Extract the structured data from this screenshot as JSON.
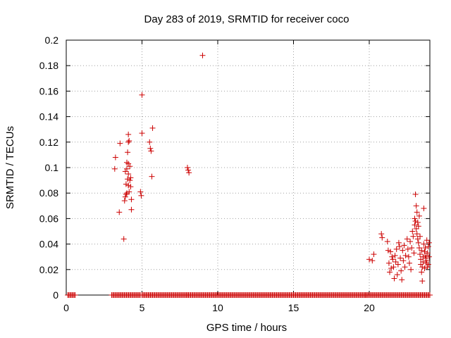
{
  "chart_data": {
    "type": "scatter",
    "title": "Day 283 of 2019, SRMTID for receiver coco",
    "xlabel": "GPS time / hours",
    "ylabel": "SRMTID / TECUs",
    "xlim": [
      0,
      24
    ],
    "ylim": [
      0,
      0.2
    ],
    "xticks": [
      0,
      5,
      10,
      15,
      20
    ],
    "yticks": [
      0,
      0.02,
      0.04,
      0.06,
      0.08,
      0.1,
      0.12,
      0.14,
      0.16,
      0.18,
      0.2
    ],
    "ytick_labels": [
      "0",
      "0.02",
      "0.04",
      "0.06",
      "0.08",
      "0.1",
      "0.12",
      "0.14",
      "0.16",
      "0.18",
      "0.2"
    ],
    "grid": true,
    "marker": "+",
    "color": "#cc0000",
    "series": [
      {
        "name": "SRMTID",
        "points": [
          [
            3.2,
            0.099
          ],
          [
            3.25,
            0.108
          ],
          [
            3.5,
            0.065
          ],
          [
            3.55,
            0.119
          ],
          [
            3.8,
            0.044
          ],
          [
            3.85,
            0.074
          ],
          [
            3.9,
            0.077
          ],
          [
            3.9,
            0.097
          ],
          [
            3.95,
            0.087
          ],
          [
            4.0,
            0.099
          ],
          [
            4.0,
            0.104
          ],
          [
            4.0,
            0.08
          ],
          [
            4.05,
            0.091
          ],
          [
            4.05,
            0.112
          ],
          [
            4.1,
            0.12
          ],
          [
            4.1,
            0.126
          ],
          [
            4.1,
            0.095
          ],
          [
            4.1,
            0.086
          ],
          [
            4.15,
            0.081
          ],
          [
            4.15,
            0.121
          ],
          [
            4.2,
            0.101
          ],
          [
            4.2,
            0.09
          ],
          [
            4.25,
            0.092
          ],
          [
            4.25,
            0.085
          ],
          [
            4.3,
            0.075
          ],
          [
            4.3,
            0.067
          ],
          [
            4.1,
            0.103
          ],
          [
            3.95,
            0.079
          ],
          [
            4.9,
            0.081
          ],
          [
            4.95,
            0.078
          ],
          [
            5.0,
            0.127
          ],
          [
            5.0,
            0.157
          ],
          [
            5.5,
            0.12
          ],
          [
            5.55,
            0.115
          ],
          [
            5.6,
            0.113
          ],
          [
            5.65,
            0.093
          ],
          [
            5.7,
            0.131
          ],
          [
            8.0,
            0.1
          ],
          [
            8.05,
            0.098
          ],
          [
            8.1,
            0.096
          ],
          [
            9.0,
            0.188
          ],
          [
            20.0,
            0.028
          ],
          [
            20.2,
            0.027
          ],
          [
            20.3,
            0.032
          ],
          [
            20.8,
            0.048
          ],
          [
            20.85,
            0.045
          ],
          [
            21.2,
            0.042
          ],
          [
            21.25,
            0.035
          ],
          [
            21.3,
            0.025
          ],
          [
            21.35,
            0.018
          ],
          [
            21.4,
            0.034
          ],
          [
            21.45,
            0.021
          ],
          [
            21.5,
            0.03
          ],
          [
            21.55,
            0.028
          ],
          [
            21.6,
            0.022
          ],
          [
            21.65,
            0.013
          ],
          [
            21.7,
            0.031
          ],
          [
            21.75,
            0.026
          ],
          [
            21.8,
            0.036
          ],
          [
            21.85,
            0.016
          ],
          [
            21.9,
            0.024
          ],
          [
            21.95,
            0.041
          ],
          [
            22.0,
            0.038
          ],
          [
            22.05,
            0.029
          ],
          [
            22.1,
            0.019
          ],
          [
            22.15,
            0.012
          ],
          [
            22.2,
            0.035
          ],
          [
            22.25,
            0.027
          ],
          [
            22.3,
            0.039
          ],
          [
            22.35,
            0.022
          ],
          [
            22.4,
            0.031
          ],
          [
            22.5,
            0.044
          ],
          [
            22.55,
            0.036
          ],
          [
            22.6,
            0.03
          ],
          [
            22.65,
            0.025
          ],
          [
            22.7,
            0.042
          ],
          [
            22.75,
            0.02
          ],
          [
            22.8,
            0.037
          ],
          [
            22.85,
            0.05
          ],
          [
            22.9,
            0.046
          ],
          [
            22.95,
            0.033
          ],
          [
            23.0,
            0.055
          ],
          [
            23.0,
            0.06
          ],
          [
            23.05,
            0.079
          ],
          [
            23.05,
            0.058
          ],
          [
            23.1,
            0.052
          ],
          [
            23.1,
            0.07
          ],
          [
            23.15,
            0.065
          ],
          [
            23.15,
            0.048
          ],
          [
            23.2,
            0.057
          ],
          [
            23.2,
            0.044
          ],
          [
            23.25,
            0.054
          ],
          [
            23.25,
            0.041
          ],
          [
            23.3,
            0.062
          ],
          [
            23.3,
            0.037
          ],
          [
            23.35,
            0.046
          ],
          [
            23.35,
            0.032
          ],
          [
            23.4,
            0.028
          ],
          [
            23.4,
            0.024
          ],
          [
            23.45,
            0.018
          ],
          [
            23.45,
            0.035
          ],
          [
            23.5,
            0.022
          ],
          [
            23.5,
            0.011
          ],
          [
            23.55,
            0.03
          ],
          [
            23.55,
            0.026
          ],
          [
            23.6,
            0.068
          ],
          [
            23.6,
            0.04
          ],
          [
            23.65,
            0.034
          ],
          [
            23.65,
            0.021
          ],
          [
            23.7,
            0.029
          ],
          [
            23.7,
            0.037
          ],
          [
            23.75,
            0.025
          ],
          [
            23.75,
            0.031
          ],
          [
            23.8,
            0.043
          ],
          [
            23.8,
            0.027
          ],
          [
            23.85,
            0.033
          ],
          [
            23.85,
            0.022
          ],
          [
            23.9,
            0.038
          ],
          [
            23.9,
            0.024
          ],
          [
            23.95,
            0.03
          ],
          [
            23.95,
            0.041
          ]
        ]
      }
    ],
    "zero_values_hours": [
      [
        0.1,
        0.6
      ],
      [
        3.0,
        4.9
      ],
      [
        5.0,
        8.0
      ],
      [
        8.0,
        19.8
      ],
      [
        19.8,
        24.0
      ]
    ]
  }
}
